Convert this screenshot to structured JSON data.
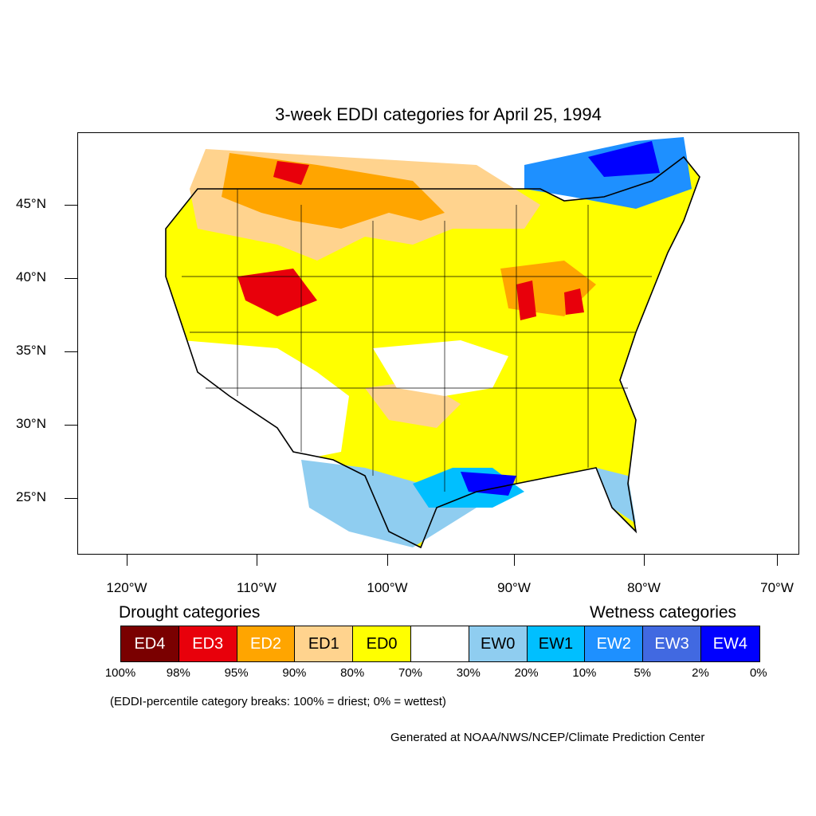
{
  "title": "3-week EDDI categories for April 25, 1994",
  "lat_labels": [
    "45°N",
    "40°N",
    "35°N",
    "30°N",
    "25°N"
  ],
  "lon_labels": [
    "120°W",
    "110°W",
    "100°W",
    "90°W",
    "80°W",
    "70°W"
  ],
  "drought_heading": "Drought categories",
  "wetness_heading": "Wetness categories",
  "legend": [
    {
      "label": "ED4",
      "color": "#7a0000",
      "text_color": "#ffffff"
    },
    {
      "label": "ED3",
      "color": "#e8000b",
      "text_color": "#ffffff"
    },
    {
      "label": "ED2",
      "color": "#ffa500",
      "text_color": "#ffffff"
    },
    {
      "label": "ED1",
      "color": "#ffd38e",
      "text_color": "#000000"
    },
    {
      "label": "ED0",
      "color": "#ffff00",
      "text_color": "#000000"
    },
    {
      "label": "",
      "color": "#ffffff",
      "text_color": "#000000"
    },
    {
      "label": "EW0",
      "color": "#8fcdf0",
      "text_color": "#000000"
    },
    {
      "label": "EW1",
      "color": "#00bfff",
      "text_color": "#000000"
    },
    {
      "label": "EW2",
      "color": "#1e90ff",
      "text_color": "#ffffff"
    },
    {
      "label": "EW3",
      "color": "#4169e1",
      "text_color": "#ffffff"
    },
    {
      "label": "EW4",
      "color": "#0000ff",
      "text_color": "#ffffff"
    }
  ],
  "percent_breaks": [
    "100%",
    "98%",
    "95%",
    "90%",
    "80%",
    "70%",
    "30%",
    "20%",
    "10%",
    "5%",
    "2%",
    "0%"
  ],
  "note": "(EDDI-percentile category breaks: 100% = driest; 0% = wettest)",
  "credit": "Generated at NOAA/NWS/NCEP/Climate Prediction Center"
}
